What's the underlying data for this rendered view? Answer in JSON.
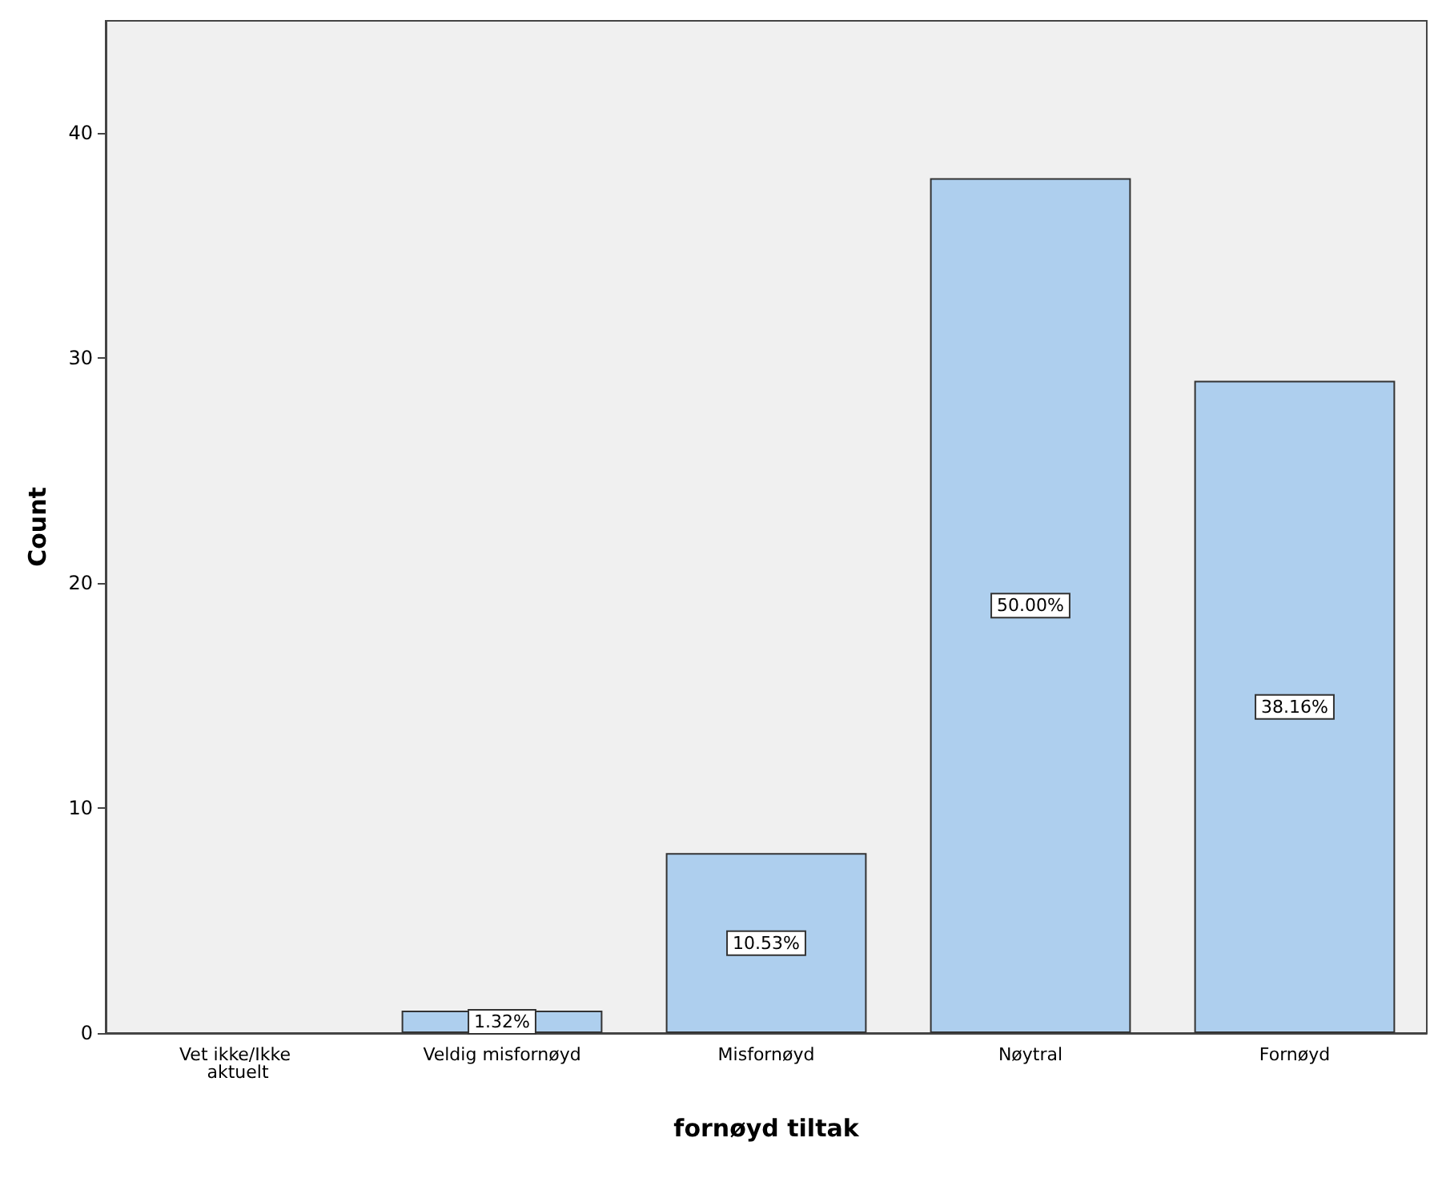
{
  "chart_data": {
    "type": "bar",
    "xlabel": "fornøyd tiltak",
    "ylabel": "Count",
    "categories": [
      "Vet ikke/Ikke aktuelt",
      "Veldig misfornøyd",
      "Misfornøyd",
      "Nøytral",
      "Fornøyd"
    ],
    "values": [
      0,
      1,
      8,
      38,
      29
    ],
    "annotations": [
      "1.32%",
      "10.53%",
      "50.00%",
      "38.16%"
    ],
    "color": "#aecfee",
    "ylim": [
      0,
      45
    ],
    "yticks": [
      0,
      10,
      20,
      30,
      40
    ]
  }
}
